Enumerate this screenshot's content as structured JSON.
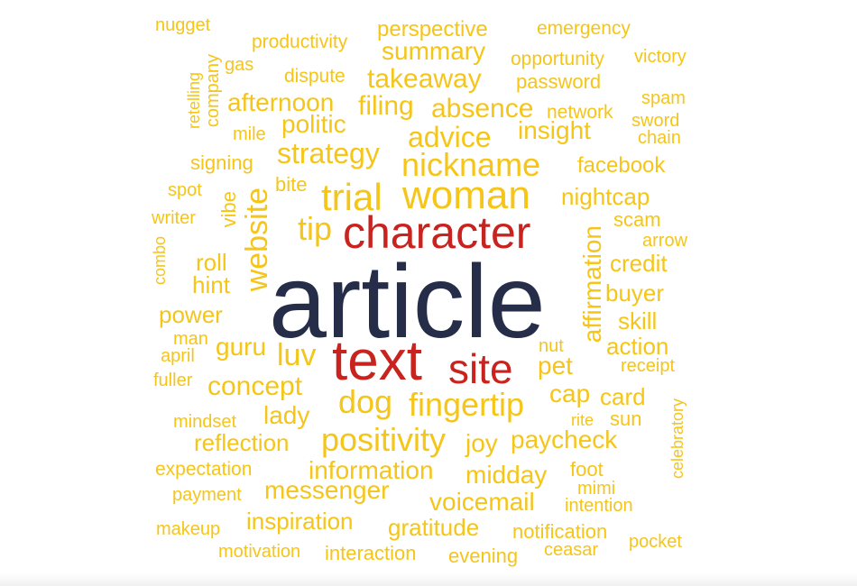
{
  "colors": {
    "primary": "#f5c518",
    "secondary": "#c8231e",
    "dominant": "#262d48"
  },
  "words": [
    {
      "text": "article",
      "tier": "dominant",
      "size": 115
    },
    {
      "text": "character",
      "tier": "secondary",
      "size": 50
    },
    {
      "text": "text",
      "tier": "secondary",
      "size": 62
    },
    {
      "text": "site",
      "tier": "secondary",
      "size": 46
    },
    {
      "text": "woman",
      "tier": "primary",
      "size": 44
    },
    {
      "text": "trial",
      "tier": "primary",
      "size": 42
    },
    {
      "text": "nickname",
      "tier": "primary",
      "size": 36
    },
    {
      "text": "website",
      "tier": "primary",
      "size": 34
    },
    {
      "text": "positivity",
      "tier": "primary",
      "size": 36
    },
    {
      "text": "fingertip",
      "tier": "primary",
      "size": 36
    },
    {
      "text": "dog",
      "tier": "primary",
      "size": 36
    },
    {
      "text": "tip",
      "tier": "primary",
      "size": 36
    },
    {
      "text": "luv",
      "tier": "primary",
      "size": 34
    },
    {
      "text": "affirmation",
      "tier": "primary",
      "size": 28
    },
    {
      "text": "advice",
      "tier": "primary",
      "size": 32
    },
    {
      "text": "strategy",
      "tier": "primary",
      "size": 32
    },
    {
      "text": "absence",
      "tier": "primary",
      "size": 30
    },
    {
      "text": "takeaway",
      "tier": "primary",
      "size": 30
    },
    {
      "text": "filing",
      "tier": "primary",
      "size": 30
    },
    {
      "text": "concept",
      "tier": "primary",
      "size": 30
    },
    {
      "text": "insight",
      "tier": "primary",
      "size": 28
    },
    {
      "text": "afternoon",
      "tier": "primary",
      "size": 28
    },
    {
      "text": "summary",
      "tier": "primary",
      "size": 28
    },
    {
      "text": "politic",
      "tier": "primary",
      "size": 28
    },
    {
      "text": "paycheck",
      "tier": "primary",
      "size": 28
    },
    {
      "text": "voicemail",
      "tier": "primary",
      "size": 28
    },
    {
      "text": "information",
      "tier": "primary",
      "size": 28
    },
    {
      "text": "messenger",
      "tier": "primary",
      "size": 28
    },
    {
      "text": "midday",
      "tier": "primary",
      "size": 28
    },
    {
      "text": "gratitude",
      "tier": "primary",
      "size": 26
    },
    {
      "text": "inspiration",
      "tier": "primary",
      "size": 26
    },
    {
      "text": "joy",
      "tier": "primary",
      "size": 28
    },
    {
      "text": "reflection",
      "tier": "primary",
      "size": 26
    },
    {
      "text": "lady",
      "tier": "primary",
      "size": 28
    },
    {
      "text": "guru",
      "tier": "primary",
      "size": 28
    },
    {
      "text": "power",
      "tier": "primary",
      "size": 26
    },
    {
      "text": "hint",
      "tier": "primary",
      "size": 26
    },
    {
      "text": "roll",
      "tier": "primary",
      "size": 26
    },
    {
      "text": "nightcap",
      "tier": "primary",
      "size": 26
    },
    {
      "text": "credit",
      "tier": "primary",
      "size": 26
    },
    {
      "text": "buyer",
      "tier": "primary",
      "size": 26
    },
    {
      "text": "skill",
      "tier": "primary",
      "size": 26
    },
    {
      "text": "action",
      "tier": "primary",
      "size": 26
    },
    {
      "text": "pet",
      "tier": "primary",
      "size": 28
    },
    {
      "text": "cap",
      "tier": "primary",
      "size": 28
    },
    {
      "text": "card",
      "tier": "primary",
      "size": 26
    },
    {
      "text": "facebook",
      "tier": "primary",
      "size": 24
    },
    {
      "text": "perspective",
      "tier": "primary",
      "size": 24
    },
    {
      "text": "password",
      "tier": "primary",
      "size": 22
    },
    {
      "text": "scam",
      "tier": "primary",
      "size": 22
    },
    {
      "text": "signing",
      "tier": "primary",
      "size": 22
    },
    {
      "text": "opportunity",
      "tier": "primary",
      "size": 21
    },
    {
      "text": "productivity",
      "tier": "primary",
      "size": 21
    },
    {
      "text": "emergency",
      "tier": "primary",
      "size": 21
    },
    {
      "text": "dispute",
      "tier": "primary",
      "size": 21
    },
    {
      "text": "network",
      "tier": "primary",
      "size": 21
    },
    {
      "text": "notification",
      "tier": "primary",
      "size": 22
    },
    {
      "text": "interaction",
      "tier": "primary",
      "size": 22
    },
    {
      "text": "evening",
      "tier": "primary",
      "size": 22
    },
    {
      "text": "expectation",
      "tier": "primary",
      "size": 21
    },
    {
      "text": "payment",
      "tier": "primary",
      "size": 20
    },
    {
      "text": "motivation",
      "tier": "primary",
      "size": 20
    },
    {
      "text": "makeup",
      "tier": "primary",
      "size": 20
    },
    {
      "text": "mindset",
      "tier": "primary",
      "size": 20
    },
    {
      "text": "intention",
      "tier": "primary",
      "size": 20
    },
    {
      "text": "foot",
      "tier": "primary",
      "size": 22
    },
    {
      "text": "mimi",
      "tier": "primary",
      "size": 20
    },
    {
      "text": "sun",
      "tier": "primary",
      "size": 22
    },
    {
      "text": "rite",
      "tier": "primary",
      "size": 18
    },
    {
      "text": "receipt",
      "tier": "primary",
      "size": 20
    },
    {
      "text": "nut",
      "tier": "primary",
      "size": 20
    },
    {
      "text": "ceasar",
      "tier": "primary",
      "size": 20
    },
    {
      "text": "pocket",
      "tier": "primary",
      "size": 20
    },
    {
      "text": "celebratory",
      "tier": "primary",
      "size": 18
    },
    {
      "text": "nugget",
      "tier": "primary",
      "size": 20
    },
    {
      "text": "victory",
      "tier": "primary",
      "size": 20
    },
    {
      "text": "spam",
      "tier": "primary",
      "size": 20
    },
    {
      "text": "sword",
      "tier": "primary",
      "size": 20
    },
    {
      "text": "chain",
      "tier": "primary",
      "size": 20
    },
    {
      "text": "gas",
      "tier": "primary",
      "size": 20
    },
    {
      "text": "mile",
      "tier": "primary",
      "size": 20
    },
    {
      "text": "company",
      "tier": "primary",
      "size": 20
    },
    {
      "text": "retelling",
      "tier": "primary",
      "size": 18
    },
    {
      "text": "bite",
      "tier": "primary",
      "size": 22
    },
    {
      "text": "spot",
      "tier": "primary",
      "size": 20
    },
    {
      "text": "writer",
      "tier": "primary",
      "size": 20
    },
    {
      "text": "vibe",
      "tier": "primary",
      "size": 22
    },
    {
      "text": "combo",
      "tier": "primary",
      "size": 18
    },
    {
      "text": "arrow",
      "tier": "primary",
      "size": 20
    },
    {
      "text": "man",
      "tier": "primary",
      "size": 20
    },
    {
      "text": "april",
      "tier": "primary",
      "size": 20
    },
    {
      "text": "fuller",
      "tier": "primary",
      "size": 20
    }
  ]
}
